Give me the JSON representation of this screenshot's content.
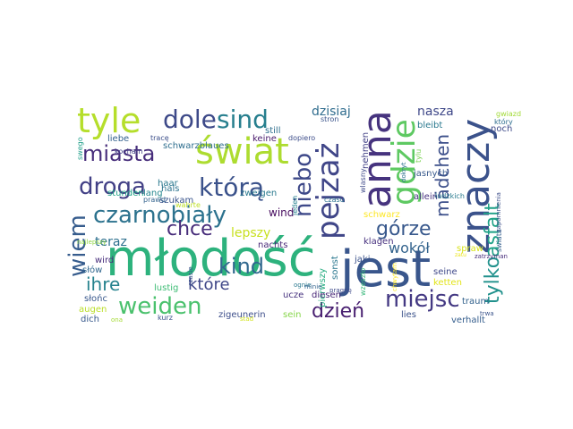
{
  "wordcloud": {
    "words": [
      {
        "text": "młodość",
        "color": "#2db27d"
      },
      {
        "text": "jest",
        "color": "#39568c"
      },
      {
        "text": "znaczy",
        "color": "#3b528b"
      },
      {
        "text": "anna",
        "color": "#46337e"
      },
      {
        "text": "świat",
        "color": "#addc30"
      },
      {
        "text": "tyle",
        "color": "#b5de2b"
      },
      {
        "text": "gdzie",
        "color": "#5ec962"
      },
      {
        "text": "pejzaż",
        "color": "#404688"
      },
      {
        "text": "czarnobiały",
        "color": "#2c728e"
      },
      {
        "text": "droga",
        "color": "#424086"
      },
      {
        "text": "którą",
        "color": "#3b528b"
      },
      {
        "text": "miasta",
        "color": "#472d7b"
      },
      {
        "text": "dole",
        "color": "#3e4a89"
      },
      {
        "text": "sind",
        "color": "#277f8e"
      },
      {
        "text": "niebo",
        "color": "#3e4989"
      },
      {
        "text": "wiem",
        "color": "#365c8d"
      },
      {
        "text": "weiden",
        "color": "#4ac16d"
      },
      {
        "text": "kind",
        "color": "#31688e"
      },
      {
        "text": "miejsc",
        "color": "#443983"
      },
      {
        "text": "tylko",
        "color": "#21918c"
      },
      {
        "text": "asfalt",
        "color": "#1fa187"
      },
      {
        "text": "górze",
        "color": "#38588c"
      },
      {
        "text": "chce",
        "color": "#472c7a"
      },
      {
        "text": "ihre",
        "color": "#26828e"
      },
      {
        "text": "które",
        "color": "#3f4788"
      },
      {
        "text": "dzień",
        "color": "#481f70"
      },
      {
        "text": "mädchen",
        "color": "#3c4f8a"
      },
      {
        "text": "wokół",
        "color": "#33638d"
      },
      {
        "text": "dzisiaj",
        "color": "#2f6c8e"
      },
      {
        "text": "nasza",
        "color": "#3f4889"
      },
      {
        "text": "lepszy",
        "color": "#c8e020"
      },
      {
        "text": "teraz",
        "color": "#2d708e"
      },
      {
        "text": "wind",
        "color": "#460b5e"
      },
      {
        "text": "nachts",
        "color": "#482878"
      },
      {
        "text": "klagen",
        "color": "#46307e"
      },
      {
        "text": "schwarz",
        "color": "#fde725"
      },
      {
        "text": "pierwszy",
        "color": "#27ad81"
      },
      {
        "text": "sonst",
        "color": "#2a778e"
      },
      {
        "text": "jaki",
        "color": "#3b528b"
      },
      {
        "text": "wzeszło",
        "color": "#35b779"
      },
      {
        "text": "ketten",
        "color": "#e2e418"
      },
      {
        "text": "seine",
        "color": "#3f4889"
      },
      {
        "text": "traum",
        "color": "#33628d"
      },
      {
        "text": "spraw",
        "color": "#d8e219"
      },
      {
        "text": "diesen",
        "color": "#482677"
      },
      {
        "text": "ucze",
        "color": "#46327e"
      },
      {
        "text": "sein",
        "color": "#86d549"
      },
      {
        "text": "lies",
        "color": "#3b528b"
      },
      {
        "text": "verhallt",
        "color": "#355e8d"
      },
      {
        "text": "zigeunerin",
        "color": "#3d4e8a"
      },
      {
        "text": "augen",
        "color": "#bade28"
      },
      {
        "text": "dich",
        "color": "#38598c"
      },
      {
        "text": "lustig",
        "color": "#3dbc74"
      },
      {
        "text": "słów",
        "color": "#31678e"
      },
      {
        "text": "wird",
        "color": "#472d7b"
      },
      {
        "text": "haar",
        "color": "#2a788e"
      },
      {
        "text": "szukam",
        "color": "#3a548c"
      },
      {
        "text": "prawd",
        "color": "#33638d"
      },
      {
        "text": "stunden",
        "color": "#20a386"
      },
      {
        "text": "lang",
        "color": "#24878e"
      },
      {
        "text": "schwarzblaues",
        "color": "#2e6e8e"
      },
      {
        "text": "zweigen",
        "color": "#29798e"
      },
      {
        "text": "liebe",
        "color": "#34618d"
      },
      {
        "text": "tracę",
        "color": "#3c4f8a"
      },
      {
        "text": "keine",
        "color": "#481a6c"
      },
      {
        "text": "dopiero",
        "color": "#3d4d8a"
      },
      {
        "text": "still",
        "color": "#2e6f8e"
      },
      {
        "text": "stron",
        "color": "#3a538b"
      },
      {
        "text": "nehmen",
        "color": "#424186"
      },
      {
        "text": "bleibt",
        "color": "#29788e"
      },
      {
        "text": "noch",
        "color": "#3e4a89"
      },
      {
        "text": "jasnych",
        "color": "#38598c"
      },
      {
        "text": "allein",
        "color": "#46337f"
      },
      {
        "text": "ludzkich",
        "color": "#297b8e"
      },
      {
        "text": "hals",
        "color": "#2c738e"
      },
      {
        "text": "wahrte",
        "color": "#bddf26"
      },
      {
        "text": "jeden",
        "color": "#26828e"
      },
      {
        "text": "czasu",
        "color": "#2c718e"
      },
      {
        "text": "tylu",
        "color": "#7ad151"
      },
      {
        "text": "wlasny",
        "color": "#3e4989"
      },
      {
        "text": "swego",
        "color": "#1f9e89"
      },
      {
        "text": "kocham",
        "color": "#424086"
      },
      {
        "text": "słońc",
        "color": "#38588c"
      },
      {
        "text": "kurz",
        "color": "#3b528b"
      },
      {
        "text": "gwiazd",
        "color": "#a2da37"
      },
      {
        "text": "który",
        "color": "#2e6d8e"
      },
      {
        "text": "zapomnienia",
        "color": "#3d4e8a"
      },
      {
        "text": "świata",
        "color": "#355f8d"
      },
      {
        "text": "zatrzyman",
        "color": "#472d7b"
      },
      {
        "text": "trwa",
        "color": "#3a538b"
      },
      {
        "text": "zatu",
        "color": "#ece51b"
      },
      {
        "text": "pragnę",
        "color": "#3e4a89"
      },
      {
        "text": "ognie",
        "color": "#2a788e"
      },
      {
        "text": "minie",
        "color": "#33638d"
      },
      {
        "text": "czasie",
        "color": "#3a548c"
      },
      {
        "text": "chwytam",
        "color": "#fde725"
      },
      {
        "text": "dokryt",
        "color": "#2c718e"
      },
      {
        "text": "stad",
        "color": "#d2e21b"
      },
      {
        "text": "ona",
        "color": "#a5db36"
      },
      {
        "text": "najlepszy",
        "color": "#90d743"
      }
    ]
  }
}
